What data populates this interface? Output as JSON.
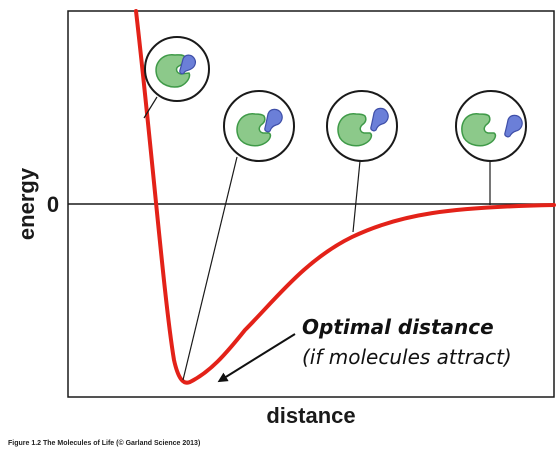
{
  "chart_data": {
    "type": "line",
    "title": "",
    "xlabel": "distance",
    "ylabel": "energy",
    "y_ticks": [
      "0"
    ],
    "x_ticks": [],
    "curve": {
      "name": "",
      "color": "#e32219",
      "shape": "potential-energy well: very high at short distance, minimum at optimal distance, approaching 0 at large distance"
    },
    "annotation": {
      "title": "Optimal distance",
      "subtitle": "(if molecules attract)"
    },
    "insets": [
      {
        "label": "molecules overlapping",
        "icon": "green-protein-blue-ligand"
      },
      {
        "label": "molecules at optimal distance",
        "icon": "green-protein-blue-ligand"
      },
      {
        "label": "molecules slightly separated",
        "icon": "green-protein-blue-ligand"
      },
      {
        "label": "molecules far apart",
        "icon": "green-protein-blue-ligand"
      }
    ],
    "colors": {
      "protein_fill": "#8cc98a",
      "protein_stroke": "#3f9a48",
      "ligand_fill": "#6b7fd8",
      "ligand_stroke": "#3f4fa8"
    },
    "grid": false,
    "legend": "none"
  },
  "credit": "Figure 1.2 The Molecules of Life (© Garland Science 2013)"
}
